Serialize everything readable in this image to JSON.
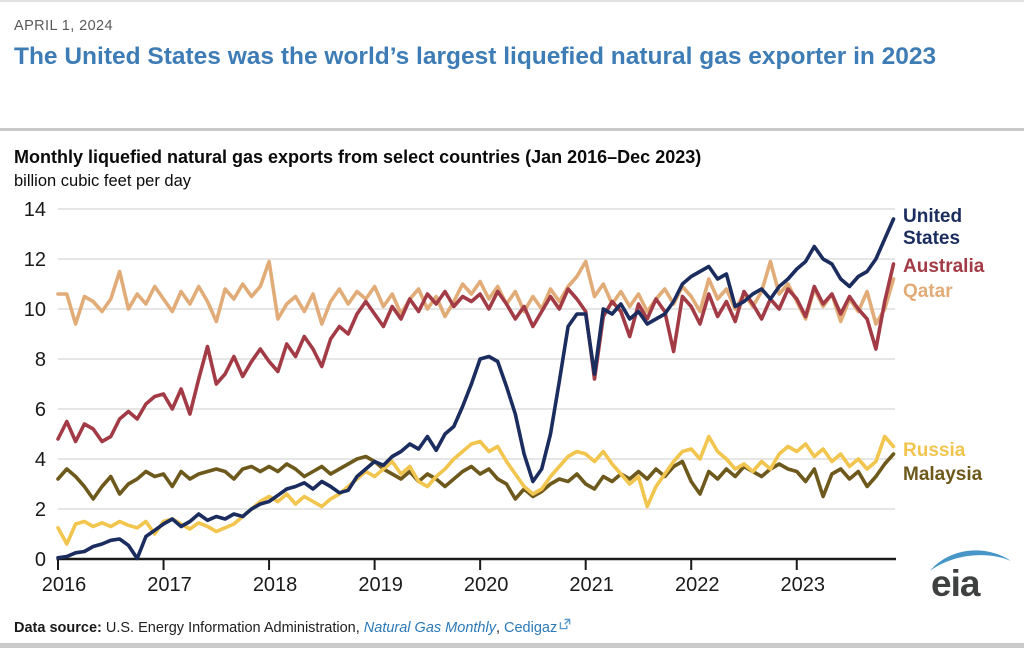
{
  "header": {
    "date": "APRIL 1, 2024",
    "headline": "The United States was the world’s largest liquefied natural gas exporter in 2023"
  },
  "chart": {
    "title": "Monthly liquefied natural gas exports from select countries (Jan 2016–Dec 2023)",
    "unit_label": "billion cubic feet per day"
  },
  "chart_data": {
    "type": "line",
    "title": "Monthly liquefied natural gas exports from select countries (Jan 2016–Dec 2023)",
    "ylabel": "billion cubic feet per day",
    "x_unit": "month",
    "x_range": [
      "Jan 2016",
      "Dec 2023"
    ],
    "x_tick_labels": [
      "2016",
      "2017",
      "2018",
      "2019",
      "2020",
      "2021",
      "2022",
      "2023"
    ],
    "months_per_tick": 12,
    "ylim": [
      0,
      14
    ],
    "y_ticks": [
      0,
      2,
      4,
      6,
      8,
      10,
      12,
      14
    ],
    "grid": true,
    "legend_position": "right-of-line-ends",
    "gridline_color": "#d8d8d8",
    "axis_color": "#1a1a1a",
    "series": [
      {
        "name": "United States",
        "color": "#1b2c5e",
        "values": [
          0.05,
          0.1,
          0.25,
          0.3,
          0.5,
          0.6,
          0.75,
          0.8,
          0.55,
          0.02,
          0.9,
          1.15,
          1.4,
          1.6,
          1.3,
          1.5,
          1.8,
          1.55,
          1.7,
          1.6,
          1.8,
          1.7,
          2.0,
          2.2,
          2.3,
          2.55,
          2.8,
          2.9,
          3.05,
          2.8,
          3.1,
          2.9,
          2.65,
          2.75,
          3.3,
          3.6,
          3.9,
          3.75,
          4.1,
          4.3,
          4.6,
          4.4,
          4.9,
          4.35,
          5.0,
          5.3,
          6.1,
          7.0,
          8.0,
          8.1,
          7.9,
          6.9,
          5.8,
          4.2,
          3.1,
          3.6,
          5.0,
          7.1,
          9.3,
          9.8,
          9.8,
          7.4,
          10.0,
          9.8,
          10.2,
          9.6,
          9.9,
          9.4,
          9.6,
          9.8,
          10.3,
          11.0,
          11.3,
          11.5,
          11.7,
          11.2,
          11.4,
          10.1,
          10.3,
          10.6,
          10.8,
          10.4,
          10.9,
          11.2,
          11.6,
          11.9,
          12.5,
          12.0,
          11.8,
          11.2,
          10.9,
          11.3,
          11.5,
          12.0,
          12.8,
          13.6
        ]
      },
      {
        "name": "Australia",
        "color": "#a23b45",
        "values": [
          4.8,
          5.5,
          4.7,
          5.4,
          5.2,
          4.7,
          4.9,
          5.6,
          5.9,
          5.6,
          6.2,
          6.5,
          6.6,
          6.0,
          6.8,
          5.8,
          7.2,
          8.5,
          7.0,
          7.4,
          8.1,
          7.3,
          7.9,
          8.4,
          7.9,
          7.5,
          8.6,
          8.1,
          8.9,
          8.4,
          7.7,
          8.8,
          9.3,
          9.0,
          9.8,
          10.3,
          9.8,
          9.3,
          10.1,
          9.6,
          10.4,
          9.9,
          10.6,
          10.2,
          10.7,
          10.1,
          10.5,
          10.3,
          10.6,
          10.0,
          10.7,
          10.2,
          9.6,
          10.1,
          9.3,
          9.9,
          10.5,
          10.0,
          10.8,
          10.4,
          9.9,
          7.2,
          9.7,
          10.3,
          9.9,
          8.9,
          10.2,
          9.6,
          10.4,
          9.9,
          8.3,
          10.5,
          10.1,
          9.4,
          10.6,
          9.7,
          10.3,
          9.5,
          10.7,
          10.2,
          9.6,
          10.4,
          10.0,
          10.8,
          10.4,
          9.7,
          10.9,
          10.2,
          10.6,
          9.8,
          10.5,
          10.0,
          9.6,
          8.4,
          10.3,
          11.8
        ]
      },
      {
        "name": "Qatar",
        "color": "#e1ac77",
        "values": [
          10.6,
          10.6,
          9.4,
          10.5,
          10.3,
          9.9,
          10.4,
          11.5,
          10.0,
          10.6,
          10.2,
          10.9,
          10.4,
          9.9,
          10.7,
          10.2,
          10.9,
          10.3,
          9.5,
          10.8,
          10.4,
          11.0,
          10.5,
          10.9,
          11.9,
          9.6,
          10.2,
          10.5,
          9.9,
          10.6,
          9.4,
          10.3,
          10.8,
          10.2,
          10.7,
          10.4,
          10.9,
          10.1,
          10.6,
          9.8,
          10.4,
          10.8,
          10.0,
          10.5,
          9.7,
          10.3,
          11.0,
          10.6,
          11.1,
          10.4,
          10.9,
          10.2,
          10.7,
          9.9,
          10.5,
          10.0,
          10.8,
          10.3,
          10.9,
          11.3,
          11.9,
          10.5,
          11.0,
          10.2,
          10.7,
          10.1,
          10.6,
          9.9,
          10.4,
          10.8,
          10.2,
          10.9,
          10.5,
          9.9,
          11.2,
          10.4,
          10.8,
          10.0,
          10.6,
          10.1,
          10.7,
          11.9,
          10.6,
          11.0,
          10.3,
          9.6,
          10.8,
          10.1,
          10.6,
          9.5,
          10.4,
          9.9,
          10.7,
          9.4,
          10.0,
          11.2
        ]
      },
      {
        "name": "Russia",
        "color": "#f2c54e",
        "values": [
          1.25,
          0.6,
          1.4,
          1.5,
          1.3,
          1.45,
          1.3,
          1.5,
          1.35,
          1.25,
          1.5,
          1.0,
          1.5,
          1.6,
          1.4,
          1.2,
          1.45,
          1.3,
          1.1,
          1.25,
          1.4,
          1.7,
          2.0,
          2.3,
          2.5,
          2.3,
          2.6,
          2.2,
          2.5,
          2.3,
          2.1,
          2.4,
          2.6,
          2.9,
          3.2,
          3.5,
          3.3,
          3.6,
          3.9,
          3.4,
          3.7,
          3.1,
          2.9,
          3.3,
          3.6,
          4.0,
          4.3,
          4.6,
          4.7,
          4.3,
          4.5,
          3.9,
          3.4,
          2.9,
          2.6,
          2.8,
          3.3,
          3.7,
          4.1,
          4.3,
          4.2,
          3.9,
          4.3,
          3.8,
          3.4,
          3.0,
          3.3,
          2.1,
          2.9,
          3.4,
          3.9,
          4.3,
          4.4,
          4.0,
          4.9,
          4.3,
          4.0,
          3.6,
          3.8,
          3.5,
          3.9,
          3.6,
          4.2,
          4.5,
          4.3,
          4.6,
          4.1,
          4.4,
          3.9,
          4.2,
          3.7,
          4.0,
          3.6,
          3.9,
          4.9,
          4.5
        ]
      },
      {
        "name": "Malaysia",
        "color": "#6e591d",
        "values": [
          3.2,
          3.6,
          3.3,
          2.9,
          2.4,
          2.9,
          3.3,
          2.6,
          3.0,
          3.2,
          3.5,
          3.3,
          3.4,
          2.9,
          3.5,
          3.2,
          3.4,
          3.5,
          3.6,
          3.5,
          3.2,
          3.6,
          3.7,
          3.5,
          3.7,
          3.5,
          3.8,
          3.6,
          3.3,
          3.5,
          3.7,
          3.4,
          3.6,
          3.8,
          4.0,
          4.1,
          3.9,
          3.6,
          3.4,
          3.2,
          3.5,
          3.1,
          3.4,
          3.2,
          2.9,
          3.2,
          3.5,
          3.7,
          3.4,
          3.6,
          3.2,
          3.0,
          2.4,
          2.8,
          2.5,
          2.7,
          3.0,
          3.2,
          3.1,
          3.4,
          3.0,
          2.8,
          3.3,
          3.1,
          3.4,
          3.2,
          3.5,
          3.2,
          3.6,
          3.3,
          3.7,
          3.9,
          3.1,
          2.6,
          3.5,
          3.2,
          3.6,
          3.3,
          3.7,
          3.5,
          3.3,
          3.6,
          3.8,
          3.6,
          3.5,
          3.1,
          3.6,
          2.5,
          3.4,
          3.6,
          3.2,
          3.5,
          2.9,
          3.3,
          3.8,
          4.2
        ]
      }
    ]
  },
  "footer": {
    "source_label": "Data source:",
    "source_body": "U.S. Energy Information Administration,",
    "link_monthly": "Natural Gas Monthly",
    "comma": ",",
    "link_cedigaz": "Cedigaz",
    "external_link_icon": "external-link"
  },
  "logo": {
    "text": "eia"
  },
  "colors": {
    "headline_blue": "#3e7cb5",
    "link_blue": "#2d79b8",
    "axis_black": "#1a1a1a",
    "gridline_gray": "#d8d8d8",
    "rule_gray": "#c9c9c9"
  }
}
